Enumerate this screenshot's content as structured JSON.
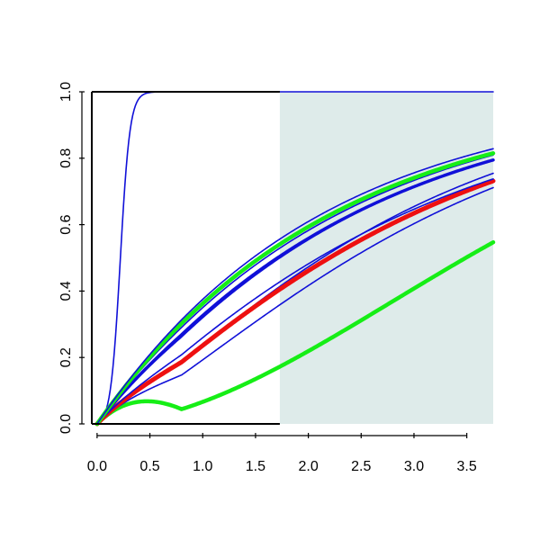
{
  "chart_data": {
    "type": "line",
    "title": "",
    "xlabel": "",
    "ylabel": "",
    "xlim": [
      -0.05,
      3.75
    ],
    "ylim": [
      0,
      1.0
    ],
    "x_ticks": [
      "0.0",
      "0.5",
      "1.0",
      "1.5",
      "2.0",
      "2.5",
      "3.0",
      "3.5"
    ],
    "y_ticks": [
      "0.0",
      "0.2",
      "0.4",
      "0.6",
      "0.8",
      "1.0"
    ],
    "shaded_region": {
      "x_start": 1.73,
      "x_end": 3.75,
      "color": "#deebea"
    },
    "colors": {
      "blue": "#1010d8",
      "red": "#ee1010",
      "green": "#16ee16",
      "frame": "#000000"
    },
    "series": [
      {
        "kind": "logistic",
        "k": 22,
        "x0": 0.22,
        "color": "blue",
        "width": 1.6
      },
      {
        "kind": "saturating",
        "c": 0.235,
        "p": 1.85,
        "color": "green",
        "width": 4.5
      },
      {
        "kind": "saturating",
        "c": 0.35,
        "p": 1.25,
        "color": "blue",
        "width": 1.6
      },
      {
        "kind": "saturating",
        "c": 0.314,
        "p": 1.33,
        "color": "blue",
        "width": 1.6
      },
      {
        "kind": "saturating",
        "c": 0.335,
        "p": 1.2,
        "color": "red",
        "width": 5
      },
      {
        "kind": "saturating",
        "c": 0.345,
        "p": 1.13,
        "color": "blue",
        "width": 1.6
      },
      {
        "kind": "saturating",
        "c": 0.413,
        "p": 1.05,
        "color": "blue",
        "width": 3.5
      },
      {
        "kind": "saturating",
        "c": 0.41,
        "p": 1.07,
        "color": "blue",
        "width": 1.6
      },
      {
        "kind": "saturating",
        "c": 0.438,
        "p": 1.02,
        "color": "blue",
        "width": 1.6
      },
      {
        "kind": "saturating",
        "c": 0.45,
        "p": 1.0,
        "color": "green",
        "width": 4.5
      },
      {
        "kind": "saturating",
        "c": 0.47,
        "p": 1.0,
        "color": "blue",
        "width": 1.6
      }
    ]
  }
}
